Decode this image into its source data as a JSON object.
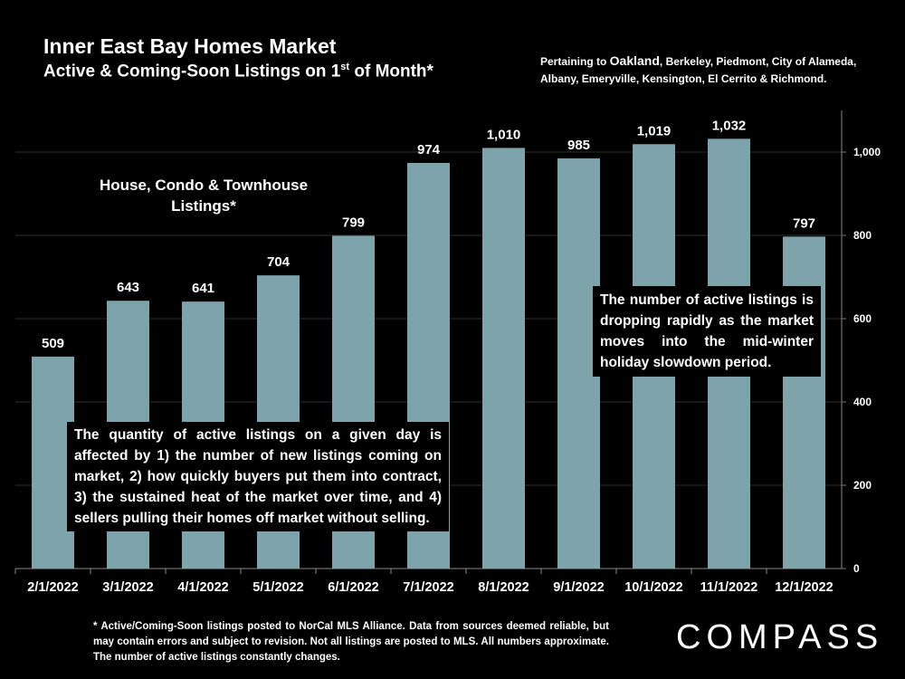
{
  "header": {
    "title": "Inner East Bay Homes Market",
    "subtitle_main": "Active & Coming-Soon Listings on 1",
    "subtitle_sup": "st",
    "subtitle_tail": " of Month*",
    "pertaining_prefix": "Pertaining to ",
    "pertaining_city": "Oakland",
    "pertaining_rest": ", Berkeley, Piedmont, City of Alameda, Albany, Emeryville, Kensington, El Cerrito & Richmond."
  },
  "chart_data": {
    "type": "bar",
    "title": "Inner East Bay Homes Market — Active & Coming-Soon Listings on 1st of Month*",
    "series_label": "House, Condo & Townhouse Listings*",
    "categories": [
      "2/1/2022",
      "3/1/2022",
      "4/1/2022",
      "5/1/2022",
      "6/1/2022",
      "7/1/2022",
      "8/1/2022",
      "9/1/2022",
      "10/1/2022",
      "11/1/2022",
      "12/1/2022"
    ],
    "values": [
      509,
      643,
      641,
      704,
      799,
      974,
      1010,
      985,
      1019,
      1032,
      797
    ],
    "value_labels": [
      "509",
      "643",
      "641",
      "704",
      "799",
      "974",
      "1,010",
      "985",
      "1,019",
      "1,032",
      "797"
    ],
    "yticks": [
      0,
      200,
      400,
      600,
      800,
      1000
    ],
    "ytick_labels": [
      "0",
      "200",
      "400",
      "600",
      "800",
      "1,000"
    ],
    "ylim": [
      0,
      1100
    ],
    "yaxis_side": "right",
    "grid": true,
    "bar_color": "#7da4aa"
  },
  "notes": {
    "left": "The quantity of active listings on a given day is affected by 1) the number of new listings coming on market, 2) how quickly buyers put them into contract, 3) the sustained heat of the market over time, and 4) sellers pulling their homes off market without selling.",
    "right": "The number of active listings is dropping rapidly as the market moves into the mid-winter holiday slowdown period."
  },
  "footnote": "* Active/Coming-Soon listings posted to NorCal MLS Alliance.  Data from sources deemed reliable, but may contain errors and subject to revision.  Not all listings are posted to MLS. All numbers approximate. The number of active listings constantly changes.",
  "brand": {
    "logo_text": "COMPASS"
  }
}
